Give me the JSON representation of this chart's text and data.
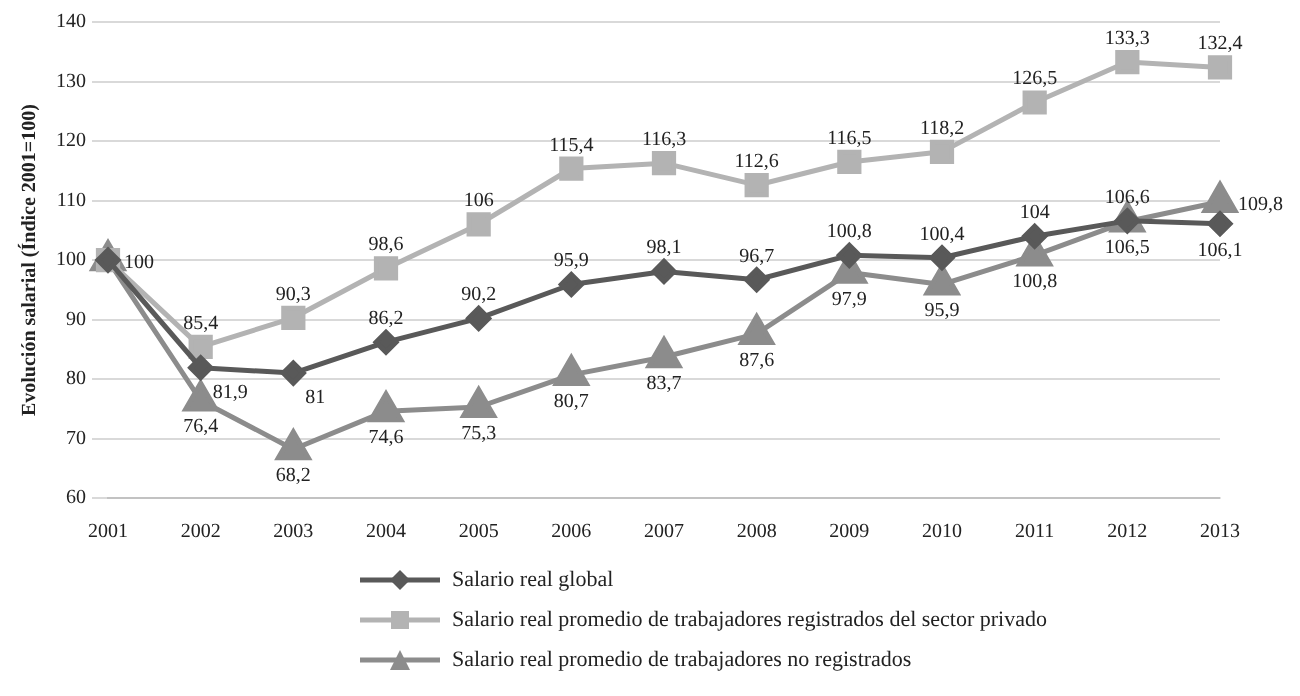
{
  "chart_data": {
    "type": "line",
    "ylabel": "Evolución salarial (Índice 2001=100)",
    "categories": [
      "2001",
      "2002",
      "2003",
      "2004",
      "2005",
      "2006",
      "2007",
      "2008",
      "2009",
      "2010",
      "2011",
      "2012",
      "2013"
    ],
    "ylim": [
      60,
      140
    ],
    "yticks": [
      60,
      70,
      80,
      90,
      100,
      110,
      120,
      130,
      140
    ],
    "grid": "y",
    "legend": "bottom",
    "series": [
      {
        "name": "Salario real global",
        "color": "#595959",
        "marker": "diamond",
        "values": [
          100,
          81.9,
          81,
          86.2,
          90.2,
          95.9,
          98.1,
          96.7,
          100.8,
          100.4,
          104,
          106.6,
          106.1
        ],
        "value_labels": [
          "100",
          "81,9",
          "81",
          "86,2",
          "90,2",
          "95,9",
          "98,1",
          "96,7",
          "100,8",
          "100,4",
          "104",
          "106,6",
          "106,1"
        ]
      },
      {
        "name": "Salario real promedio de trabajadores registrados del sector privado",
        "color": "#b3b3b3",
        "marker": "square",
        "values": [
          100,
          85.4,
          90.3,
          98.6,
          106,
          115.4,
          116.3,
          112.6,
          116.5,
          118.2,
          126.5,
          133.3,
          132.4
        ],
        "value_labels": [
          null,
          "85,4",
          "90,3",
          "98,6",
          "106",
          "115,4",
          "116,3",
          "112,6",
          "116,5",
          "118,2",
          "126,5",
          "133,3",
          "132,4"
        ]
      },
      {
        "name": "Salario real promedio de trabajadores no registrados",
        "color": "#8c8c8c",
        "marker": "triangle",
        "values": [
          100,
          76.4,
          68.2,
          74.6,
          75.3,
          80.7,
          83.7,
          87.6,
          97.9,
          95.9,
          100.8,
          106.5,
          109.8
        ],
        "value_labels": [
          null,
          "76,4",
          "68,2",
          "74,6",
          "75,3",
          "80,7",
          "83,7",
          "87,6",
          "97,9",
          "95,9",
          "100,8",
          "106,5",
          "109,8"
        ]
      }
    ]
  }
}
